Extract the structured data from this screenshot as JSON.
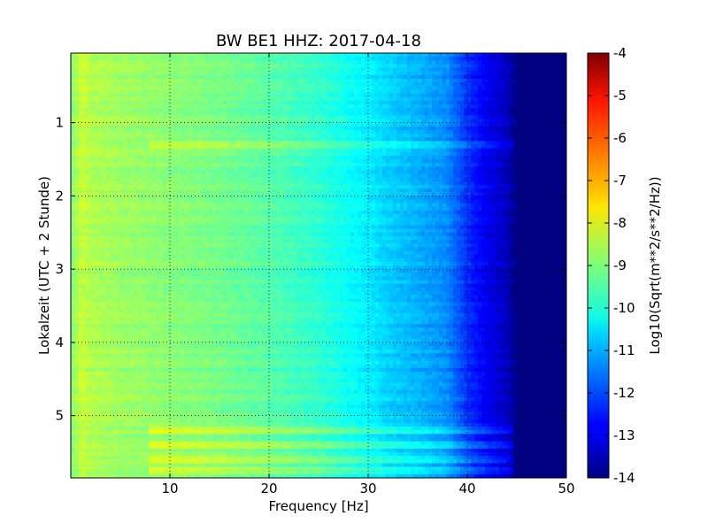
{
  "chart_data": {
    "type": "heatmap",
    "title": "BW BE1 HHZ: 2017-04-18",
    "xlabel": "Frequency [Hz]",
    "ylabel": "Lokalzeit (UTC + 2 Stunde)",
    "xlim": [
      0,
      50
    ],
    "ylim": [
      5.85,
      0.05
    ],
    "xticks": [
      "10",
      "20",
      "30",
      "40",
      "50"
    ],
    "yticks": [
      "1",
      "2",
      "3",
      "4",
      "5"
    ],
    "grid": true,
    "colorbar": {
      "label": "Log10(Sqrt(m**2/s**2/Hz))",
      "range": [
        -14,
        -4
      ],
      "ticks": [
        "-4",
        "-5",
        "-6",
        "-7",
        "-8",
        "-9",
        "-10",
        "-11",
        "-12",
        "-13",
        "-14"
      ],
      "colormap": "jet"
    },
    "spectrum_profile": {
      "frequency_hz": [
        0,
        1,
        2,
        5,
        10,
        15,
        20,
        25,
        30,
        32,
        35,
        38,
        40,
        42,
        44,
        45,
        50
      ],
      "log10_psd": [
        -9.0,
        -8.3,
        -8.5,
        -8.7,
        -8.9,
        -9.1,
        -9.4,
        -9.8,
        -10.4,
        -10.7,
        -11.0,
        -11.4,
        -12.3,
        -12.9,
        -13.4,
        -14.0,
        -14.0
      ]
    },
    "notable_bands": [
      {
        "time_h": 1.3,
        "note": "elevated line across 10–40 Hz"
      },
      {
        "time_h": 5.2,
        "note": "elevated line to ~45 Hz"
      },
      {
        "time_h": 5.4,
        "note": "elevated line to ~45 Hz"
      },
      {
        "time_h": 5.6,
        "note": "elevated line to ~45 Hz"
      },
      {
        "time_h": 5.75,
        "note": "elevated line to ~45 Hz"
      }
    ]
  }
}
